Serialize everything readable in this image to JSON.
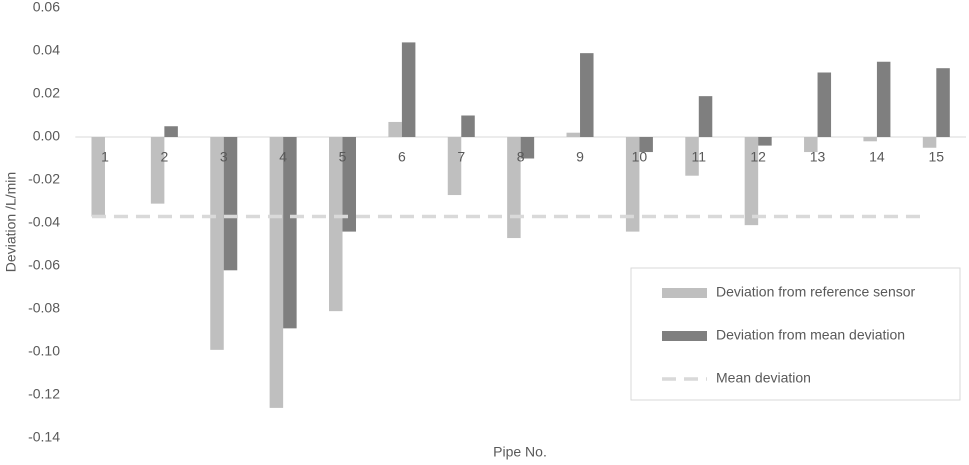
{
  "chart_data": {
    "type": "bar",
    "x_label": "Pipe No.",
    "y_label": "Deviation /L/min",
    "categories": [
      "1",
      "2",
      "3",
      "4",
      "5",
      "6",
      "7",
      "8",
      "9",
      "10",
      "11",
      "12",
      "13",
      "14",
      "15"
    ],
    "series": [
      {
        "name": "Deviation from reference sensor",
        "color": "#bfbfbf",
        "values": [
          -0.037,
          -0.031,
          -0.099,
          -0.126,
          -0.081,
          0.007,
          -0.027,
          -0.047,
          0.002,
          -0.044,
          -0.018,
          -0.041,
          -0.007,
          -0.002,
          -0.005
        ]
      },
      {
        "name": "Deviation from mean deviation",
        "color": "#7f7f7f",
        "values": [
          0.0,
          0.005,
          -0.062,
          -0.089,
          -0.044,
          0.044,
          0.01,
          -0.01,
          0.039,
          -0.007,
          0.019,
          -0.004,
          0.03,
          0.035,
          0.032
        ]
      }
    ],
    "mean_deviation": {
      "name": "Mean deviation",
      "value": -0.037,
      "color": "#d9d9d9"
    },
    "ylim": [
      -0.14,
      0.06
    ],
    "yticks": [
      0.06,
      0.04,
      0.02,
      {
        "value": 0,
        "label": "0.00"
      },
      -0.02,
      -0.04,
      -0.06,
      -0.08,
      {
        "value": -0.1,
        "label": "-0.10"
      },
      -0.12,
      -0.14
    ],
    "legend": "lower-right"
  }
}
